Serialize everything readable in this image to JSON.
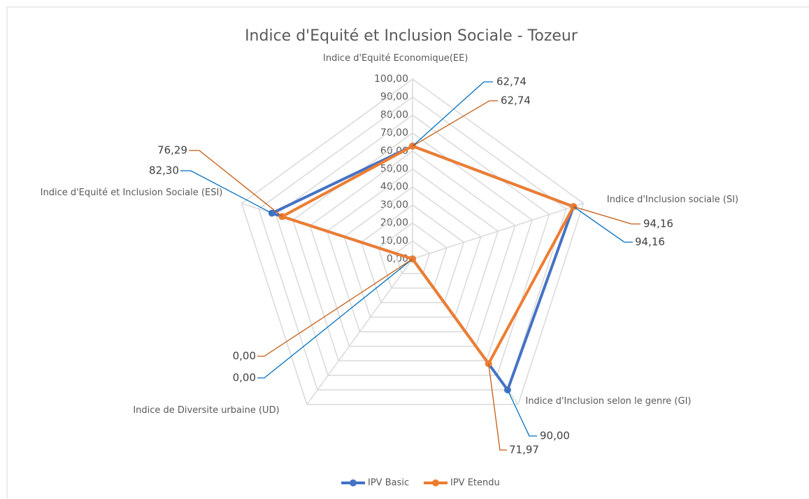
{
  "chart_data": {
    "type": "radar",
    "title": "Indice d'Equité et Inclusion Sociale - Tozeur",
    "categories": [
      "Indice d'Equité Economique(EE)",
      "Indice d'Inclusion sociale (SI)",
      "Indice d'Inclusion selon le genre (GI)",
      "Indice de Diversite urbaine (UD)",
      "Indice d'Equité et Inclusion Sociale (ESI)"
    ],
    "series": [
      {
        "name": "IPV Basic",
        "color": "#4472c4",
        "label_color": "#0070c0",
        "values": [
          62.74,
          94.16,
          90.0,
          0.0,
          82.3
        ],
        "value_labels": [
          "62,74",
          "94,16",
          "90,00",
          "0,00",
          "82,30"
        ]
      },
      {
        "name": "IPV Etendu",
        "color": "#ed7d31",
        "label_color": "#c55a11",
        "values": [
          62.74,
          94.16,
          71.97,
          0.0,
          76.29
        ],
        "value_labels": [
          "62,74",
          "94,16",
          "71,97",
          "0,00",
          "76,29"
        ]
      }
    ],
    "ylim": [
      0,
      100
    ],
    "yticks": [
      {
        "value": 0,
        "label": "0,00"
      },
      {
        "value": 10,
        "label": "10,00"
      },
      {
        "value": 20,
        "label": "20,00"
      },
      {
        "value": 30,
        "label": "30,00"
      },
      {
        "value": 40,
        "label": "40,00"
      },
      {
        "value": 50,
        "label": "50,00"
      },
      {
        "value": 60,
        "label": "60,00"
      },
      {
        "value": 70,
        "label": "70,00"
      },
      {
        "value": 80,
        "label": "80,00"
      },
      {
        "value": 90,
        "label": "90,00"
      },
      {
        "value": 100,
        "label": "100,00"
      }
    ],
    "grid": true,
    "legend": "bottom"
  }
}
